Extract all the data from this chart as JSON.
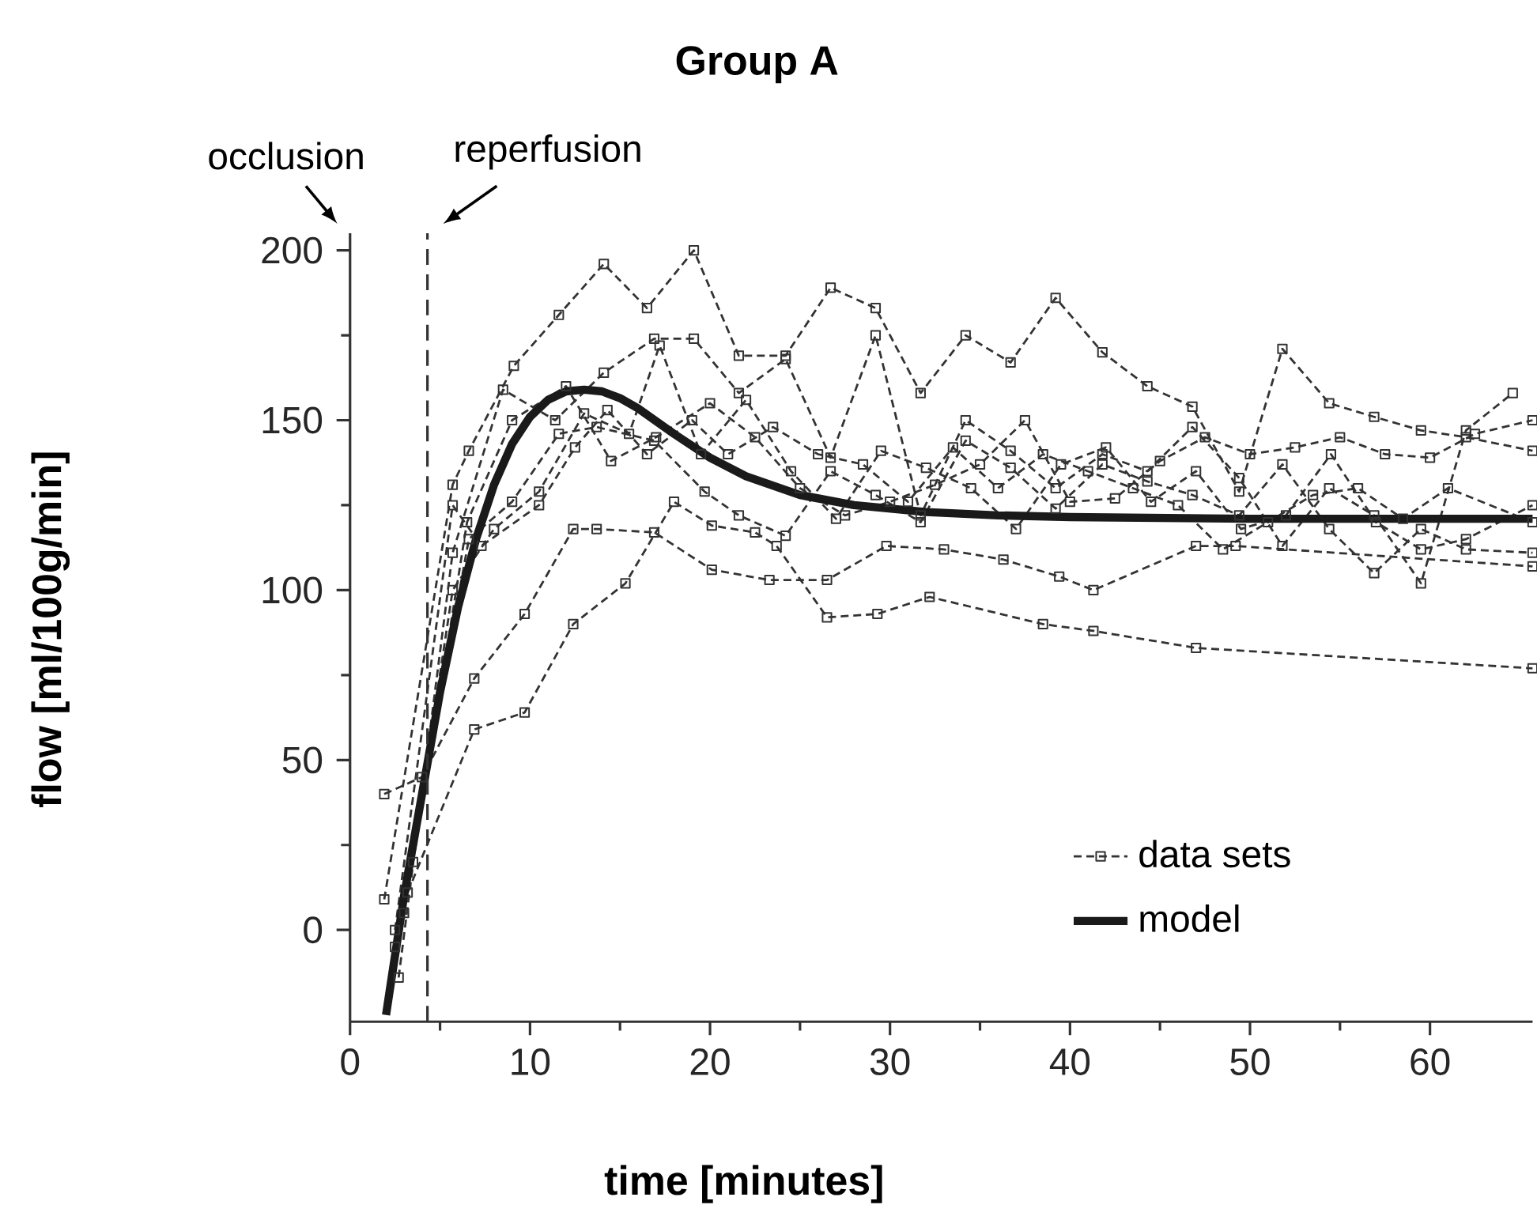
{
  "chart_data": {
    "type": "line",
    "title": "Group A",
    "xlabel": "time [minutes]",
    "ylabel": "flow [ml/100g/min]",
    "xlim": [
      0,
      65.7
    ],
    "ylim": [
      -27,
      205
    ],
    "xticks": [
      0,
      10,
      20,
      30,
      40,
      50,
      60
    ],
    "yticks": [
      0,
      50,
      100,
      150,
      200
    ],
    "legend": "bottom right",
    "annotations": [
      "occlusion"
    ],
    "ref_lines": [
      {
        "axis": "x",
        "value": 4.3,
        "label": "reperfusion",
        "line_style": "dashed"
      }
    ],
    "series": [
      {
        "name": "data sets",
        "color": "#333333",
        "marker": "square",
        "line_style": "dashed",
        "x": [
          1.9,
          5.7,
          6.6,
          9.1,
          11.6,
          14.1,
          16.5,
          19.1,
          21.6,
          24.2,
          26.7,
          29.2,
          31.7,
          34.2,
          36.7,
          39.2,
          41.8,
          44.3,
          46.8,
          49.4,
          51.8,
          54.4,
          56.9,
          59.5,
          62,
          65.7
        ],
        "values": [
          9,
          131,
          141,
          166,
          181,
          196,
          183,
          200,
          169,
          169,
          189,
          183,
          158,
          175,
          167,
          186,
          170,
          160,
          154,
          129,
          171,
          155,
          151,
          147,
          145,
          141
        ]
      },
      {
        "color": "#333333",
        "marker": "square",
        "line_style": "dashed",
        "x": [
          2.7,
          5.7,
          8.5,
          11.4,
          14.1,
          16.9,
          19.1,
          21.6,
          24.2,
          26.7,
          29.2,
          31.7,
          34.2,
          36.7,
          39.2,
          41.8,
          44.3,
          46.8,
          49.4,
          51.8,
          54.4,
          56.9,
          59.5,
          62,
          64.6
        ],
        "values": [
          -14,
          111,
          159,
          150,
          164,
          174,
          174,
          158,
          168,
          139,
          175,
          122,
          150,
          141,
          130,
          140,
          135,
          148,
          133,
          113,
          130,
          122,
          102,
          147,
          158
        ]
      },
      {
        "color": "#333333",
        "marker": "square",
        "line_style": "dashed",
        "x": [
          3.2,
          6.9,
          9.7,
          12.4,
          15.3,
          18,
          20.1,
          22.5,
          23.7,
          26.5,
          29.3,
          32.2,
          38.5,
          41.3,
          47,
          65.7
        ],
        "values": [
          11,
          59,
          64,
          90,
          102,
          126,
          119,
          117,
          113,
          92,
          93,
          98,
          90,
          88,
          83,
          77
        ]
      },
      {
        "color": "#333333",
        "marker": "square",
        "line_style": "dashed",
        "x": [
          1.9,
          4,
          6.9,
          9.7,
          12.4,
          13.7,
          16.9,
          20.1,
          23.3,
          26.5,
          29.8,
          33,
          36.3,
          39.4,
          41.3,
          47,
          49.2,
          65.7
        ],
        "values": [
          40,
          45,
          74,
          93,
          118,
          118,
          117,
          106,
          103,
          103,
          113,
          112,
          109,
          104,
          100,
          113,
          113,
          107
        ]
      },
      {
        "color": "#333333",
        "marker": "square",
        "line_style": "dashed",
        "x": [
          2.5,
          6.6,
          9,
          11.6,
          13.7,
          16.9,
          19.7,
          21.6,
          24.2,
          26.7,
          29.2,
          31.7,
          34.2,
          36.7,
          39.2,
          41.8,
          44.3,
          46.8,
          49.4,
          51.8,
          54.4,
          56.9,
          59.5,
          62,
          65.7
        ],
        "values": [
          -5,
          115,
          126,
          146,
          148,
          144,
          129,
          122,
          116,
          135,
          128,
          120,
          144,
          136,
          124,
          137,
          132,
          128,
          122,
          137,
          118,
          105,
          118,
          112,
          111
        ]
      },
      {
        "color": "#333333",
        "marker": "square",
        "line_style": "dashed",
        "x": [
          3,
          5.7,
          8,
          10.5,
          13,
          15.5,
          17.2,
          19.5,
          22,
          24.5,
          27,
          29.5,
          32,
          34.5,
          37,
          39.5,
          42,
          44.5,
          47,
          49.5,
          52,
          54.5,
          57,
          59.5,
          62,
          65.7
        ],
        "values": [
          5,
          100,
          118,
          129,
          152,
          146,
          172,
          140,
          156,
          135,
          121,
          141,
          136,
          130,
          118,
          137,
          142,
          126,
          135,
          118,
          122,
          140,
          120,
          112,
          115,
          125
        ]
      },
      {
        "color": "#333333",
        "marker": "square",
        "line_style": "dashed",
        "x": [
          2.5,
          5.7,
          7.3,
          10.5,
          12.5,
          14.3,
          16.5,
          19,
          21,
          23.5,
          26,
          28.5,
          31,
          33.5,
          36,
          38.5,
          41,
          43.5,
          46,
          48.5,
          51,
          53.5,
          56,
          58.5,
          61,
          65.7
        ],
        "values": [
          0,
          125,
          113,
          125,
          142,
          153,
          140,
          150,
          140,
          148,
          140,
          137,
          126,
          142,
          130,
          140,
          135,
          130,
          125,
          112,
          120,
          128,
          130,
          121,
          130,
          120
        ]
      },
      {
        "color": "#333333",
        "marker": "square",
        "line_style": "dashed",
        "x": [
          3.5,
          6.5,
          9,
          12,
          14.5,
          17,
          20,
          22.5,
          25,
          27.5,
          30,
          32.5,
          35,
          37.5,
          40,
          42.5,
          45,
          47.5,
          50,
          52.5,
          55,
          57.5,
          60,
          62.5,
          65.7
        ],
        "values": [
          20,
          120,
          150,
          160,
          138,
          145,
          155,
          145,
          130,
          122,
          126,
          131,
          137,
          150,
          126,
          127,
          138,
          145,
          140,
          142,
          145,
          140,
          139,
          146,
          150
        ]
      },
      {
        "name": "model",
        "color": "#1a1a1a",
        "marker": "none",
        "line_style": "solid",
        "x": [
          2,
          3,
          4,
          5,
          6,
          7,
          8,
          9,
          10,
          11,
          12,
          13,
          14,
          15,
          16,
          18,
          20,
          22,
          25,
          28,
          32,
          36,
          40,
          50,
          65.7
        ],
        "values": [
          -25,
          10,
          40,
          70,
          95,
          115,
          131,
          143,
          151,
          156,
          158.5,
          159,
          158.5,
          156.5,
          153.5,
          146,
          139,
          133.5,
          128,
          125,
          123,
          122,
          121.5,
          121,
          121
        ]
      }
    ]
  }
}
